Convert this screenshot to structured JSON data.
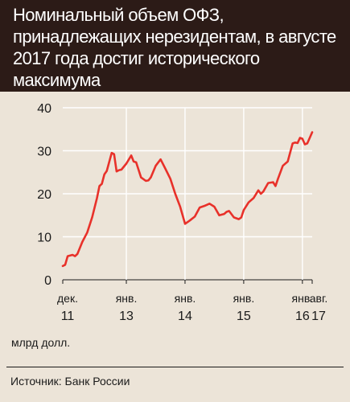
{
  "title": "Номинальный объем ОФЗ, принадлежащих нерезидентам, в августе 2017 года достиг исторического максимума",
  "unit_label": "млрд долл.",
  "source": "Источник: Банк России",
  "colors": {
    "line": "#e8312a",
    "background": "#ece4d8",
    "header": "#2c1b17",
    "grid": "#ffffff"
  },
  "chart_data": {
    "type": "line",
    "title": "Номинальный объем ОФЗ, принадлежащих нерезидентам, в августе 2017 года достиг исторического максимума",
    "ylabel": "млрд долл.",
    "ylim": [
      0,
      40
    ],
    "yticks": [
      0,
      10,
      20,
      30,
      40
    ],
    "xticks": [
      {
        "month": 0,
        "line1": "дек.",
        "line2": "11"
      },
      {
        "month": 13,
        "line1": "янв.",
        "line2": "13"
      },
      {
        "month": 25,
        "line1": "янв.",
        "line2": "14"
      },
      {
        "month": 37,
        "line1": "янв.",
        "line2": "15"
      },
      {
        "month": 49,
        "line1": "янв.",
        "line2": "16"
      },
      {
        "month": 61,
        "line1": "янв.",
        "line2": "17"
      },
      {
        "month": 68,
        "line1": "авг.",
        "line2": "17"
      }
    ],
    "grid": true,
    "series": [
      {
        "values": [
          [
            0,
            3.2
          ],
          [
            0.5,
            3.5
          ],
          [
            1,
            5.5
          ],
          [
            2,
            5.8
          ],
          [
            2.5,
            5.5
          ],
          [
            3,
            6.0
          ],
          [
            4,
            8.8
          ],
          [
            5,
            11.0
          ],
          [
            6,
            14.5
          ],
          [
            7,
            19.0
          ],
          [
            7.5,
            21.8
          ],
          [
            8,
            22.3
          ],
          [
            8.5,
            24.5
          ],
          [
            9,
            25.3
          ],
          [
            10,
            29.5
          ],
          [
            10.5,
            29.2
          ],
          [
            11,
            25.2
          ],
          [
            11.5,
            25.5
          ],
          [
            12,
            25.6
          ],
          [
            13,
            27.0
          ],
          [
            14,
            28.9
          ],
          [
            14.5,
            27.5
          ],
          [
            15,
            27.3
          ],
          [
            16,
            23.8
          ],
          [
            17,
            23.0
          ],
          [
            17.5,
            23.1
          ],
          [
            18,
            23.8
          ],
          [
            19,
            26.5
          ],
          [
            20,
            28.0
          ],
          [
            21,
            25.8
          ],
          [
            22,
            23.5
          ],
          [
            23,
            20.0
          ],
          [
            24,
            17.0
          ],
          [
            25,
            13.0
          ],
          [
            26,
            13.8
          ],
          [
            27,
            14.7
          ],
          [
            28,
            16.8
          ],
          [
            29,
            17.2
          ],
          [
            30,
            17.7
          ],
          [
            31,
            17.0
          ],
          [
            32,
            15.0
          ],
          [
            33,
            15.3
          ],
          [
            33.5,
            15.8
          ],
          [
            34,
            16.0
          ],
          [
            35,
            14.5
          ],
          [
            36,
            14.1
          ],
          [
            36.5,
            14.5
          ],
          [
            37,
            16.2
          ],
          [
            38,
            18.0
          ],
          [
            39,
            19.0
          ],
          [
            40,
            20.8
          ],
          [
            40.5,
            20.0
          ],
          [
            41,
            20.5
          ],
          [
            42,
            22.5
          ],
          [
            43,
            22.7
          ],
          [
            43.5,
            21.8
          ],
          [
            44,
            23.5
          ],
          [
            45,
            26.5
          ],
          [
            46,
            27.5
          ],
          [
            47,
            31.7
          ],
          [
            47.5,
            31.9
          ],
          [
            48,
            31.8
          ],
          [
            48.5,
            33.0
          ],
          [
            49,
            32.8
          ],
          [
            49.5,
            31.5
          ],
          [
            50,
            31.7
          ],
          [
            51,
            34.3
          ]
        ]
      }
    ]
  }
}
